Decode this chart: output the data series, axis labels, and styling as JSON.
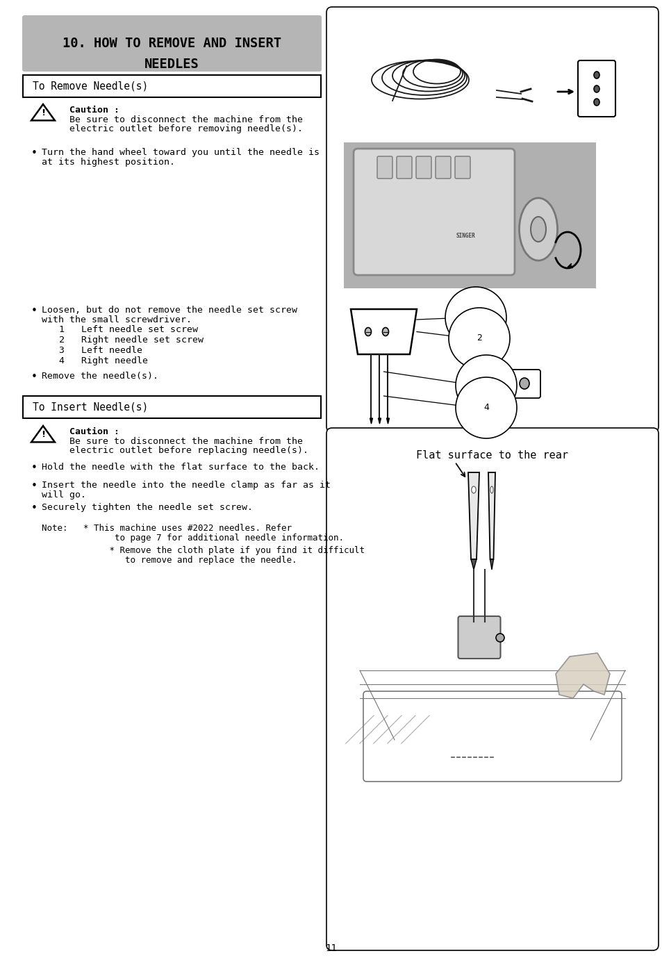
{
  "page_bg": "#ffffff",
  "title_bg": "#b5b5b5",
  "section1_title": "To Remove Needle(s)",
  "section2_title": "To Insert Needle(s)",
  "caution1_bold": "Caution :",
  "caution1_text1": "Be sure to disconnect the machine from the",
  "caution1_text2": "electric outlet before removing needle(s).",
  "caution2_bold": "Caution :",
  "caution2_text1": "Be sure to disconnect the machine from the",
  "caution2_text2": "electric outlet before replacing needle(s).",
  "bullet1_line1": "Turn the hand wheel toward you until the needle is",
  "bullet1_line2": "at its highest position.",
  "bullet2_line1": "Loosen, but do not remove the needle set screw",
  "bullet2_line2": "with the small screwdriver.",
  "list_item1": "1   Left needle set screw",
  "list_item2": "2   Right needle set screw",
  "list_item3": "3   Left needle",
  "list_item4": "4   Right needle",
  "bullet3": "Remove the needle(s).",
  "bullet4": "Hold the needle with the flat surface to the back.",
  "bullet5_line1": "Insert the needle into the needle clamp as far as it",
  "bullet5_line2": "will go.",
  "bullet6": "Securely tighten the needle set screw.",
  "note_line1": "Note:   * This machine uses #2022 needles. Refer",
  "note_line2": "              to page 7 for additional needle information.",
  "note_line3": "           * Remove the cloth plate if you find it difficult",
  "note_line4": "              to remove and replace the needle.",
  "right_panel_label": "Flat surface to the rear",
  "page_number": "11",
  "text_color": "#000000",
  "body_fontsize": 9.5,
  "title_fontsize": 13.5,
  "section_fontsize": 10.5
}
